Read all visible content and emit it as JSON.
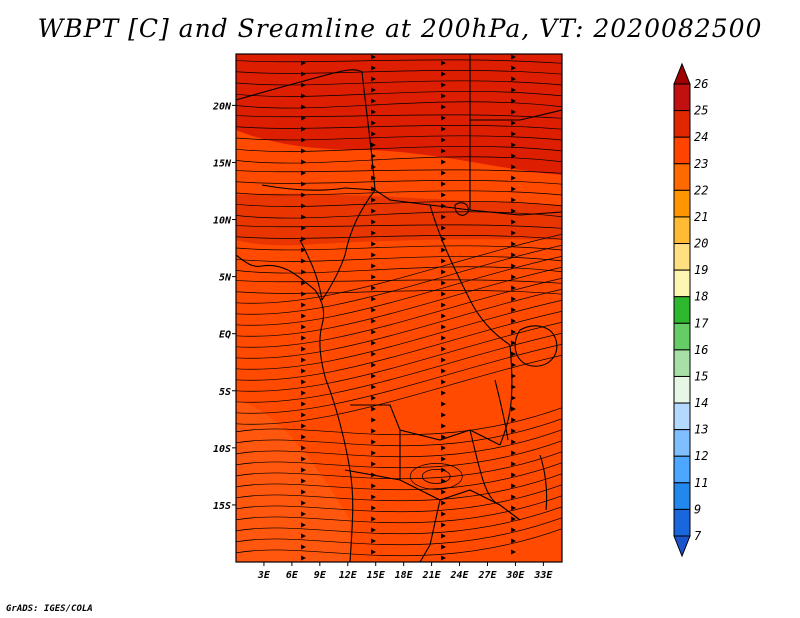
{
  "title": "WBPT [C] and Sreamline at 200hPa, VT: 2020082500",
  "credit": "GrADS: IGES/COLA",
  "map": {
    "lon_range": [
      0,
      35
    ],
    "lat_range": [
      -20,
      24.5
    ],
    "lon_ticks": [
      "3E",
      "6E",
      "9E",
      "12E",
      "15E",
      "18E",
      "21E",
      "24E",
      "27E",
      "30E",
      "33E"
    ],
    "lat_ticks": [
      "20N",
      "15N",
      "10N",
      "5N",
      "EQ",
      "5S",
      "10S",
      "15S"
    ],
    "field_colors": {
      "base": "#ff4a00",
      "north": "#dd1e00",
      "band": "#e02c00",
      "warm_patch": "#ff5a10"
    }
  },
  "colorbar": {
    "levels": [
      "26",
      "25",
      "24",
      "23",
      "22",
      "21",
      "20",
      "19",
      "18",
      "17",
      "16",
      "15",
      "14",
      "13",
      "12",
      "11",
      "9",
      "7"
    ],
    "colors": [
      "#a00000",
      "#c01010",
      "#e02800",
      "#ff4400",
      "#ff6a00",
      "#ff9500",
      "#ffbb33",
      "#ffe080",
      "#fff5b3",
      "#2eb82e",
      "#66cc66",
      "#a6e0a6",
      "#e6f7e6",
      "#b3d9ff",
      "#80bfff",
      "#4da6ff",
      "#2288ee",
      "#1a66dd",
      "#1a55cc"
    ]
  }
}
